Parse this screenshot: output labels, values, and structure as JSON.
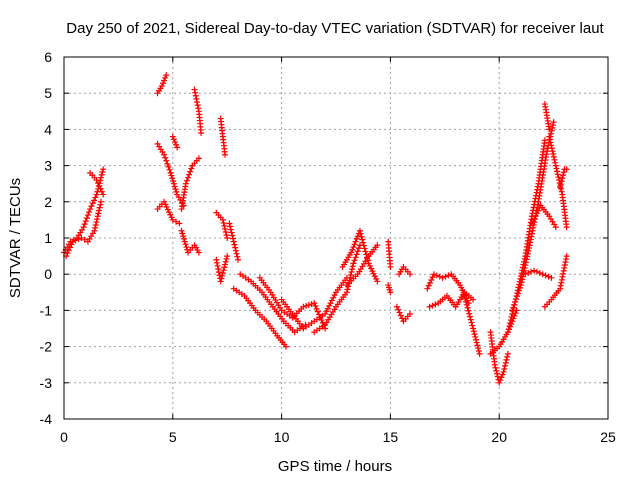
{
  "chart_data": {
    "type": "scatter",
    "title": "Day 250 of 2021, Sidereal Day-to-day VTEC variation (SDTVAR) for receiver laut",
    "xlabel": "GPS time / hours",
    "ylabel": "SDTVAR / TECUs",
    "xlim": [
      0,
      25
    ],
    "ylim": [
      -4,
      6
    ],
    "xticks": [
      "0",
      "5",
      "10",
      "15",
      "20",
      "25"
    ],
    "yticks": [
      "-4",
      "-3",
      "-2",
      "-1",
      "0",
      "1",
      "2",
      "3",
      "4",
      "5",
      "6"
    ],
    "grid": true,
    "marker": "plus",
    "series_color": "#ff0000",
    "segments": [
      {
        "name": "s1",
        "x": [
          0.0,
          0.3,
          0.6,
          0.9,
          1.2,
          1.5,
          1.8
        ],
        "y": [
          0.6,
          0.9,
          1.0,
          1.3,
          1.8,
          2.2,
          2.9
        ]
      },
      {
        "name": "s2",
        "x": [
          0.1,
          0.4,
          0.8,
          1.1,
          1.4,
          1.7
        ],
        "y": [
          0.5,
          0.9,
          1.0,
          0.9,
          1.2,
          2.0
        ]
      },
      {
        "name": "s3",
        "x": [
          1.2,
          1.5,
          1.8
        ],
        "y": [
          2.8,
          2.6,
          2.2
        ]
      },
      {
        "name": "s4",
        "x": [
          4.3,
          4.5,
          4.7
        ],
        "y": [
          5.0,
          5.2,
          5.5
        ]
      },
      {
        "name": "s5",
        "x": [
          4.3,
          4.6,
          4.9,
          5.2,
          5.5
        ],
        "y": [
          3.6,
          3.3,
          2.8,
          2.2,
          1.9
        ]
      },
      {
        "name": "s6",
        "x": [
          4.3,
          4.6,
          5.0,
          5.3
        ],
        "y": [
          1.8,
          2.0,
          1.5,
          1.4
        ]
      },
      {
        "name": "s7",
        "x": [
          5.0,
          5.2
        ],
        "y": [
          3.8,
          3.5
        ]
      },
      {
        "name": "s8",
        "x": [
          5.4,
          5.6,
          5.9,
          6.2
        ],
        "y": [
          1.8,
          2.5,
          3.0,
          3.2
        ]
      },
      {
        "name": "s9",
        "x": [
          5.4,
          5.7,
          6.0,
          6.2
        ],
        "y": [
          1.2,
          0.6,
          0.8,
          0.6
        ]
      },
      {
        "name": "s10",
        "x": [
          6.0,
          6.2,
          6.3
        ],
        "y": [
          5.1,
          4.5,
          3.9
        ]
      },
      {
        "name": "s11",
        "x": [
          7.2,
          7.4
        ],
        "y": [
          4.3,
          3.3
        ]
      },
      {
        "name": "s12",
        "x": [
          7.0,
          7.3,
          7.5
        ],
        "y": [
          1.7,
          1.5,
          1.0
        ]
      },
      {
        "name": "s13",
        "x": [
          7.0,
          7.2,
          7.5
        ],
        "y": [
          0.4,
          -0.2,
          0.5
        ]
      },
      {
        "name": "s14",
        "x": [
          7.6,
          7.8,
          8.0
        ],
        "y": [
          1.4,
          0.9,
          0.4
        ]
      },
      {
        "name": "s15",
        "x": [
          7.8,
          8.3,
          8.8,
          9.3,
          9.8,
          10.2
        ],
        "y": [
          -0.4,
          -0.6,
          -1.0,
          -1.3,
          -1.7,
          -2.0
        ]
      },
      {
        "name": "s16",
        "x": [
          8.1,
          8.6,
          9.1,
          9.6,
          10.1,
          10.6,
          11.1
        ],
        "y": [
          0.0,
          -0.2,
          -0.5,
          -0.9,
          -1.3,
          -1.6,
          -1.4
        ]
      },
      {
        "name": "s17",
        "x": [
          9.0,
          9.5,
          10.0,
          10.5,
          11.0,
          11.5,
          12.0
        ],
        "y": [
          -0.1,
          -0.5,
          -1.0,
          -1.2,
          -0.9,
          -0.8,
          -1.5
        ]
      },
      {
        "name": "s18",
        "x": [
          10.0,
          10.5,
          11.0,
          11.5,
          12.0,
          12.5,
          13.0
        ],
        "y": [
          -0.7,
          -1.1,
          -1.5,
          -1.3,
          -1.1,
          -0.5,
          -0.1
        ]
      },
      {
        "name": "s19",
        "x": [
          11.5,
          12.0,
          12.5,
          13.0,
          13.3,
          13.6
        ],
        "y": [
          -1.6,
          -1.4,
          -0.9,
          -0.5,
          0.3,
          0.8
        ]
      },
      {
        "name": "s20",
        "x": [
          12.8,
          13.2,
          13.6,
          14.0,
          14.4
        ],
        "y": [
          0.2,
          0.6,
          1.2,
          0.3,
          -0.2
        ]
      },
      {
        "name": "s21",
        "x": [
          13.0,
          13.5,
          14.0,
          14.4
        ],
        "y": [
          -0.3,
          0.0,
          0.5,
          0.8
        ]
      },
      {
        "name": "s22",
        "x": [
          14.9,
          15.0
        ],
        "y": [
          0.9,
          0.2
        ]
      },
      {
        "name": "s23",
        "x": [
          14.9,
          15.0
        ],
        "y": [
          -0.3,
          -0.5
        ]
      },
      {
        "name": "s24",
        "x": [
          15.4,
          15.6,
          15.9
        ],
        "y": [
          0.0,
          0.2,
          0.0
        ]
      },
      {
        "name": "s25",
        "x": [
          15.3,
          15.6,
          15.9
        ],
        "y": [
          -0.9,
          -1.3,
          -1.1
        ]
      },
      {
        "name": "s26",
        "x": [
          16.7,
          17.0,
          17.4,
          17.8,
          18.2,
          18.6
        ],
        "y": [
          -0.4,
          0.0,
          -0.1,
          0.0,
          -0.3,
          -0.8
        ]
      },
      {
        "name": "s27",
        "x": [
          16.8,
          17.2,
          17.6,
          18.0,
          18.4,
          18.8
        ],
        "y": [
          -0.9,
          -0.8,
          -0.6,
          -0.9,
          -0.5,
          -0.7
        ]
      },
      {
        "name": "s28",
        "x": [
          18.4,
          18.8,
          19.1
        ],
        "y": [
          -0.6,
          -1.5,
          -2.2
        ]
      },
      {
        "name": "s29",
        "x": [
          19.6,
          19.8,
          20.0,
          20.2,
          20.4
        ],
        "y": [
          -1.6,
          -2.5,
          -3.0,
          -2.7,
          -2.2
        ]
      },
      {
        "name": "s30",
        "x": [
          19.6,
          20.0,
          20.4,
          20.8
        ],
        "y": [
          -2.2,
          -2.0,
          -1.6,
          -1.0
        ]
      },
      {
        "name": "s31",
        "x": [
          20.4,
          20.8,
          21.2,
          21.5,
          21.8,
          22.1
        ],
        "y": [
          -1.6,
          -0.6,
          0.5,
          1.6,
          2.5,
          3.7
        ]
      },
      {
        "name": "s32",
        "x": [
          20.6,
          21.0,
          21.4,
          21.8,
          22.2,
          22.5
        ],
        "y": [
          -1.0,
          -0.3,
          0.8,
          2.0,
          3.4,
          4.2
        ]
      },
      {
        "name": "s33",
        "x": [
          22.1,
          22.3
        ],
        "y": [
          4.7,
          4.0
        ]
      },
      {
        "name": "s34",
        "x": [
          22.3,
          22.6,
          22.9,
          23.1
        ],
        "y": [
          3.8,
          3.0,
          2.2,
          1.3
        ]
      },
      {
        "name": "s35",
        "x": [
          21.5,
          21.9,
          22.3,
          22.6
        ],
        "y": [
          1.4,
          1.9,
          1.6,
          1.3
        ]
      },
      {
        "name": "s36",
        "x": [
          21.2,
          21.6,
          22.0,
          22.4
        ],
        "y": [
          0.0,
          0.1,
          0.0,
          -0.1
        ]
      },
      {
        "name": "s37",
        "x": [
          22.1,
          22.4,
          22.8,
          23.1
        ],
        "y": [
          -0.9,
          -0.7,
          -0.4,
          0.5
        ]
      },
      {
        "name": "s38",
        "x": [
          22.8,
          23.0,
          23.1
        ],
        "y": [
          2.4,
          2.9,
          2.9
        ]
      }
    ]
  }
}
